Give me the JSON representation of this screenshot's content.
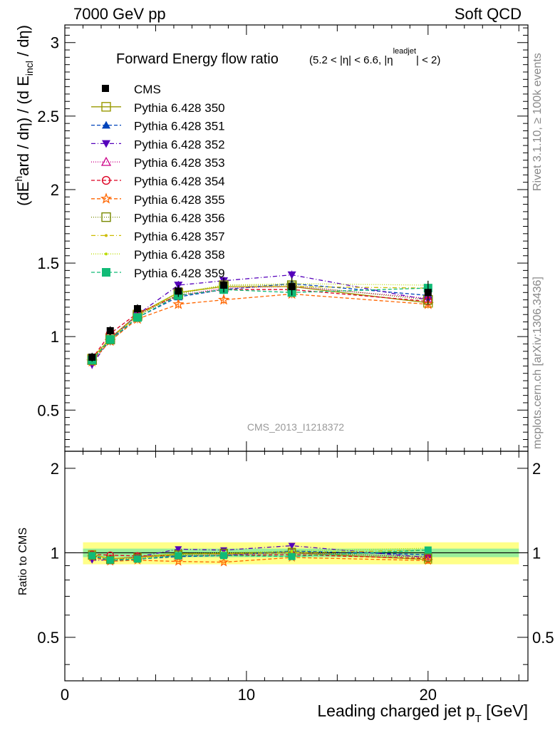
{
  "header": {
    "left": "7000 GeV pp",
    "right": "Soft QCD"
  },
  "side_labels": {
    "rivet": "Rivet 3.1.10, ≥ 100k events",
    "mcplots": "mcplots.cern.ch [arXiv:1306.3436]"
  },
  "watermark": "CMS_2013_I1218372",
  "chart_data": {
    "type": "line",
    "title": "Forward Energy flow ratio",
    "title_cut": {
      "a": "(5.2 < |η| < 6.6, |η",
      "sup": "leadjet",
      "b": "| < 2)"
    },
    "ylabel": {
      "a": "(dE",
      "sup": "h",
      "b": "ard / dη) / (d E",
      "sub": "incl",
      "c": " / dη)"
    },
    "xlabel": {
      "a": "Leading charged jet p",
      "sub": "T",
      "b": " [GeV]"
    },
    "ratio_ylabel": "Ratio to CMS",
    "xlim": [
      0,
      25.5
    ],
    "ylim": [
      0.22,
      3.12
    ],
    "ratio_ylim": [
      0.35,
      2.3
    ],
    "x_ticks": [
      "0",
      "10",
      "20"
    ],
    "y_ticks": [
      "0.5",
      "1",
      "1.5",
      "2",
      "2.5",
      "3"
    ],
    "ratio_y_ticks": [
      "0.5",
      "1",
      "2"
    ],
    "x": [
      1.5,
      2.5,
      4.0,
      6.25,
      8.75,
      12.5,
      20.0
    ],
    "data": {
      "name": "CMS",
      "values": [
        0.86,
        1.04,
        1.19,
        1.31,
        1.35,
        1.34,
        1.3
      ],
      "errors": [
        0.03,
        0.03,
        0.03,
        0.04,
        0.05,
        0.06,
        0.08
      ]
    },
    "ratio_band": {
      "stat": 0.035,
      "total": 0.09
    },
    "series": [
      {
        "name": "Pythia 6.428 350",
        "color": "#999900",
        "marker": "open-square",
        "dash": "",
        "values": [
          0.85,
          0.99,
          1.15,
          1.3,
          1.34,
          1.34,
          1.23
        ]
      },
      {
        "name": "Pythia 6.428 351",
        "color": "#0044bb",
        "marker": "triangle-up",
        "dash": "5,3",
        "values": [
          0.84,
          0.97,
          1.13,
          1.27,
          1.32,
          1.36,
          1.28
        ]
      },
      {
        "name": "Pythia 6.428 352",
        "color": "#5500bb",
        "marker": "triangle-down",
        "dash": "6,3,1,3",
        "values": [
          0.81,
          0.98,
          1.15,
          1.35,
          1.38,
          1.42,
          1.25
        ]
      },
      {
        "name": "Pythia 6.428 353",
        "color": "#cc0088",
        "marker": "open-triangle",
        "dash": "1,2",
        "values": [
          0.84,
          0.99,
          1.15,
          1.28,
          1.33,
          1.34,
          1.26
        ]
      },
      {
        "name": "Pythia 6.428 354",
        "color": "#dd0022",
        "marker": "open-circle",
        "dash": "5,3",
        "values": [
          0.85,
          1.02,
          1.16,
          1.28,
          1.32,
          1.32,
          1.24
        ]
      },
      {
        "name": "Pythia 6.428 355",
        "color": "#ff6600",
        "marker": "open-star",
        "dash": "5,3",
        "values": [
          0.83,
          0.97,
          1.12,
          1.22,
          1.25,
          1.29,
          1.22
        ]
      },
      {
        "name": "Pythia 6.428 356",
        "color": "#778800",
        "marker": "open-square",
        "dash": "1,2",
        "values": [
          0.84,
          0.98,
          1.14,
          1.29,
          1.35,
          1.35,
          1.25
        ]
      },
      {
        "name": "Pythia 6.428 357",
        "color": "#ccbb00",
        "marker": "dot",
        "dash": "6,3,1,3",
        "values": [
          0.85,
          0.99,
          1.14,
          1.3,
          1.34,
          1.34,
          1.33
        ]
      },
      {
        "name": "Pythia 6.428 358",
        "color": "#bbdd00",
        "marker": "dot",
        "dash": "1,2",
        "values": [
          0.85,
          0.99,
          1.15,
          1.3,
          1.35,
          1.36,
          1.35
        ]
      },
      {
        "name": "Pythia 6.428 359",
        "color": "#11bb77",
        "marker": "filled-square",
        "dash": "5,3",
        "values": [
          0.84,
          0.98,
          1.13,
          1.28,
          1.32,
          1.3,
          1.33
        ]
      }
    ]
  }
}
